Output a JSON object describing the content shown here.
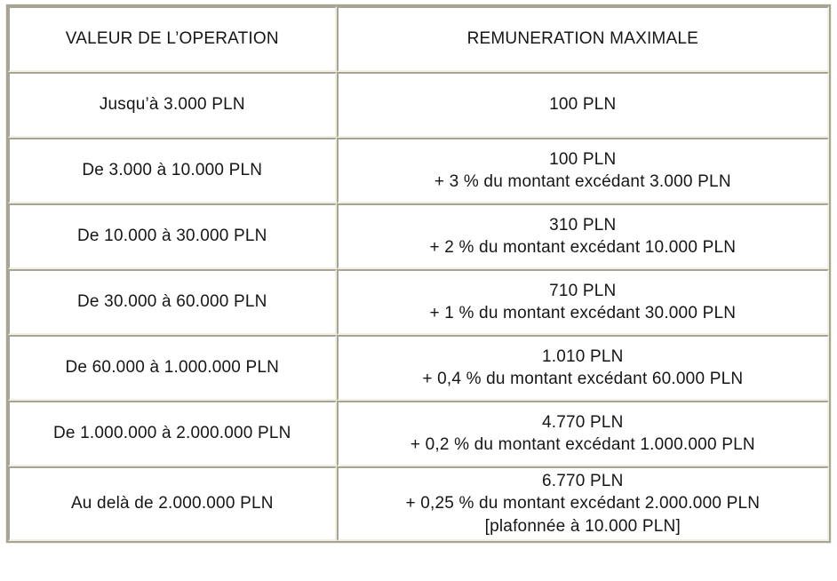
{
  "colors": {
    "border_dark": "#a7a496",
    "border_light": "#f0efe2",
    "text": "#161616",
    "cell_background": "#ffffff",
    "page_background": "#ffffff"
  },
  "table": {
    "columns": [
      "VALEUR DE L’OPERATION",
      "REMUNERATION MAXIMALE"
    ],
    "rows": [
      {
        "operation_value": "Jusqu’à 3.000 PLN",
        "remuneration_lines": [
          "100 PLN"
        ]
      },
      {
        "operation_value": "De 3.000 à 10.000 PLN",
        "remuneration_lines": [
          "100 PLN",
          "+ 3 % du montant excédant 3.000 PLN"
        ]
      },
      {
        "operation_value": "De 10.000 à 30.000 PLN",
        "remuneration_lines": [
          "310 PLN",
          "+ 2 % du montant excédant 10.000 PLN"
        ]
      },
      {
        "operation_value": "De 30.000 à 60.000 PLN",
        "remuneration_lines": [
          "710 PLN",
          "+ 1 % du montant excédant 30.000 PLN"
        ]
      },
      {
        "operation_value": "De 60.000 à 1.000.000 PLN",
        "remuneration_lines": [
          "1.010 PLN",
          "+ 0,4 % du montant excédant 60.000 PLN"
        ]
      },
      {
        "operation_value": "De 1.000.000 à 2.000.000 PLN",
        "remuneration_lines": [
          "4.770 PLN",
          "+ 0,2 % du montant excédant 1.000.000 PLN"
        ]
      },
      {
        "operation_value": "Au delà de 2.000.000 PLN",
        "remuneration_lines": [
          "6.770 PLN",
          "+ 0,25 % du montant excédant 2.000.000 PLN",
          "[plafonnée à 10.000 PLN]"
        ]
      }
    ]
  }
}
